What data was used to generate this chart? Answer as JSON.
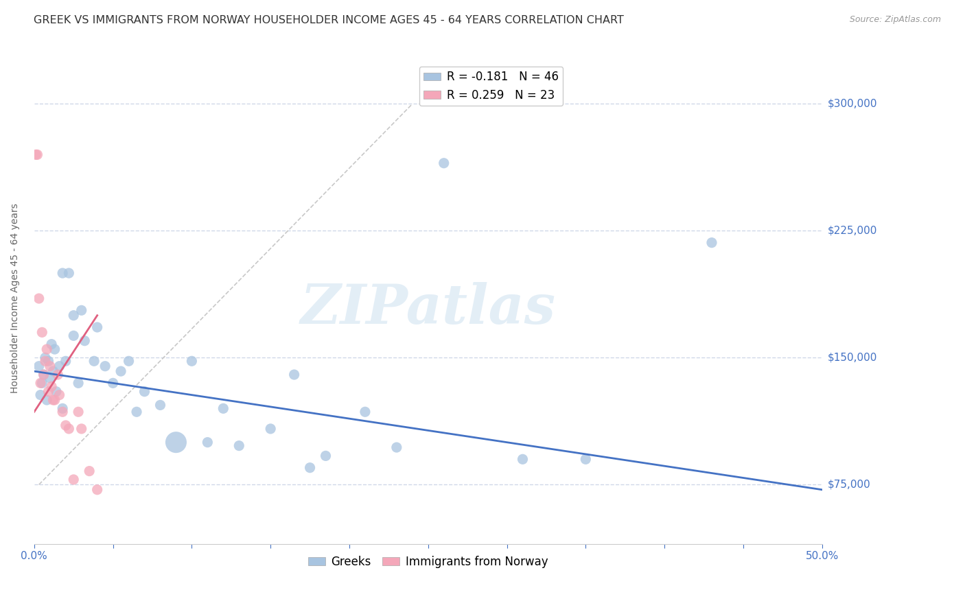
{
  "title": "GREEK VS IMMIGRANTS FROM NORWAY HOUSEHOLDER INCOME AGES 45 - 64 YEARS CORRELATION CHART",
  "source": "Source: ZipAtlas.com",
  "ylabel": "Householder Income Ages 45 - 64 years",
  "xlim": [
    0.0,
    0.5
  ],
  "ylim": [
    40000,
    330000
  ],
  "yticks": [
    75000,
    150000,
    225000,
    300000
  ],
  "ytick_labels": [
    "$75,000",
    "$150,000",
    "$225,000",
    "$300,000"
  ],
  "xticks": [
    0.0,
    0.05,
    0.1,
    0.15,
    0.2,
    0.25,
    0.3,
    0.35,
    0.4,
    0.45,
    0.5
  ],
  "xtick_labels": [
    "0.0%",
    "",
    "",
    "",
    "",
    "",
    "",
    "",
    "",
    "",
    "50.0%"
  ],
  "legend_greek_R": "R = -0.181",
  "legend_greek_N": "N = 46",
  "legend_norway_R": "R = 0.259",
  "legend_norway_N": "N = 23",
  "greek_color": "#a8c4e0",
  "norway_color": "#f4a7b9",
  "greek_line_color": "#4472c4",
  "norway_line_color": "#e06080",
  "ref_line_color": "#c8c8c8",
  "axis_color": "#4472c4",
  "text_color": "#333333",
  "greek_scatter": {
    "x": [
      0.003,
      0.004,
      0.005,
      0.006,
      0.007,
      0.008,
      0.009,
      0.01,
      0.011,
      0.012,
      0.013,
      0.014,
      0.016,
      0.018,
      0.02,
      0.022,
      0.025,
      0.028,
      0.03,
      0.032,
      0.038,
      0.04,
      0.045,
      0.05,
      0.055,
      0.06,
      0.065,
      0.07,
      0.08,
      0.09,
      0.1,
      0.11,
      0.12,
      0.13,
      0.15,
      0.165,
      0.175,
      0.185,
      0.21,
      0.23,
      0.26,
      0.31,
      0.35,
      0.43,
      0.018,
      0.025
    ],
    "y": [
      145000,
      128000,
      135000,
      140000,
      150000,
      125000,
      148000,
      138000,
      158000,
      142000,
      155000,
      130000,
      145000,
      120000,
      148000,
      200000,
      163000,
      135000,
      178000,
      160000,
      148000,
      168000,
      145000,
      135000,
      142000,
      148000,
      118000,
      130000,
      122000,
      100000,
      148000,
      100000,
      120000,
      98000,
      108000,
      140000,
      85000,
      92000,
      118000,
      97000,
      265000,
      90000,
      90000,
      218000,
      200000,
      175000
    ],
    "sizes": [
      120,
      120,
      120,
      120,
      120,
      120,
      120,
      120,
      120,
      120,
      120,
      120,
      120,
      120,
      120,
      120,
      120,
      120,
      120,
      120,
      120,
      120,
      120,
      120,
      120,
      120,
      120,
      120,
      120,
      500,
      120,
      120,
      120,
      120,
      120,
      120,
      120,
      120,
      120,
      120,
      120,
      120,
      120,
      120,
      120,
      120
    ]
  },
  "norway_scatter": {
    "x": [
      0.001,
      0.002,
      0.003,
      0.004,
      0.005,
      0.006,
      0.007,
      0.008,
      0.009,
      0.01,
      0.011,
      0.012,
      0.013,
      0.015,
      0.016,
      0.018,
      0.02,
      0.022,
      0.025,
      0.028,
      0.03,
      0.035,
      0.04
    ],
    "y": [
      270000,
      270000,
      185000,
      135000,
      165000,
      140000,
      148000,
      155000,
      130000,
      145000,
      133000,
      125000,
      125000,
      140000,
      128000,
      118000,
      110000,
      108000,
      78000,
      118000,
      108000,
      83000,
      72000
    ],
    "sizes": [
      120,
      120,
      120,
      120,
      120,
      120,
      120,
      120,
      120,
      120,
      120,
      120,
      120,
      120,
      120,
      120,
      120,
      120,
      120,
      120,
      120,
      120,
      120
    ]
  },
  "greek_reg_line": {
    "x0": 0.0,
    "x1": 0.5,
    "y0": 142000,
    "y1": 72000
  },
  "norway_reg_line": {
    "x0": 0.0,
    "x1": 0.04,
    "y0": 118000,
    "y1": 175000
  },
  "ref_line": {
    "x0": 0.003,
    "x1": 0.24,
    "y0": 75000,
    "y1": 300000
  },
  "watermark": "ZIPatlas",
  "background_color": "#ffffff",
  "grid_color": "#d0d8e8",
  "title_fontsize": 11.5,
  "axis_label_fontsize": 10,
  "tick_fontsize": 11,
  "legend_fontsize": 12
}
